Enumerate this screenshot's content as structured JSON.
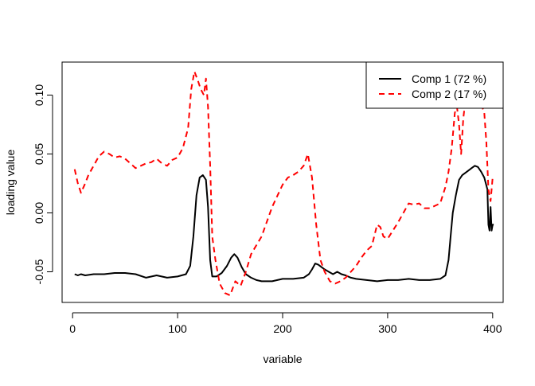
{
  "chart_data": {
    "type": "line",
    "title": "",
    "xlabel": "variable",
    "ylabel": "loading value",
    "xlim": [
      -10,
      410
    ],
    "ylim": [
      -0.076,
      0.128
    ],
    "xticks": [
      0,
      100,
      200,
      300,
      400
    ],
    "yticks": [
      -0.05,
      0.0,
      0.05,
      0.1
    ],
    "xtick_labels": [
      "0",
      "100",
      "200",
      "300",
      "400"
    ],
    "ytick_labels": [
      "-0.05",
      "0.00",
      "0.05",
      "0.10"
    ],
    "grid": false,
    "legend_position": "top-right",
    "series": [
      {
        "name": "Comp 1 (72 %)",
        "color": "#000000",
        "dash": "solid",
        "x": [
          2,
          5,
          8,
          12,
          20,
          30,
          40,
          50,
          60,
          70,
          80,
          90,
          100,
          108,
          112,
          115,
          118,
          121,
          124,
          127,
          129,
          131,
          133,
          137,
          142,
          147,
          151,
          154,
          157,
          161,
          165,
          170,
          175,
          180,
          190,
          200,
          210,
          220,
          225,
          228,
          231,
          234,
          237,
          240,
          244,
          248,
          252,
          256,
          260,
          265,
          270,
          280,
          290,
          300,
          310,
          320,
          330,
          340,
          350,
          355,
          358,
          360,
          362,
          365,
          368,
          371,
          374,
          377,
          380,
          383,
          386,
          389,
          392,
          395,
          396,
          397,
          398,
          399,
          400,
          401
        ],
        "values": [
          -0.052,
          -0.053,
          -0.052,
          -0.053,
          -0.052,
          -0.052,
          -0.051,
          -0.051,
          -0.052,
          -0.055,
          -0.053,
          -0.055,
          -0.054,
          -0.052,
          -0.045,
          -0.02,
          0.015,
          0.03,
          0.032,
          0.028,
          0.005,
          -0.04,
          -0.054,
          -0.054,
          -0.051,
          -0.045,
          -0.038,
          -0.035,
          -0.038,
          -0.046,
          -0.052,
          -0.055,
          -0.057,
          -0.058,
          -0.058,
          -0.056,
          -0.056,
          -0.055,
          -0.052,
          -0.048,
          -0.043,
          -0.044,
          -0.046,
          -0.048,
          -0.05,
          -0.052,
          -0.05,
          -0.052,
          -0.053,
          -0.055,
          -0.056,
          -0.057,
          -0.058,
          -0.057,
          -0.057,
          -0.056,
          -0.057,
          -0.057,
          -0.056,
          -0.053,
          -0.04,
          -0.02,
          0.0,
          0.015,
          0.028,
          0.032,
          0.034,
          0.036,
          0.038,
          0.04,
          0.039,
          0.035,
          0.03,
          0.02,
          -0.01,
          -0.015,
          0.005,
          -0.015,
          -0.01,
          -0.01
        ]
      },
      {
        "name": "Comp 2 (17 %)",
        "color": "#ff0000",
        "dash": "dashed",
        "x": [
          2,
          5,
          8,
          12,
          15,
          20,
          25,
          30,
          35,
          40,
          45,
          50,
          55,
          60,
          65,
          70,
          75,
          80,
          85,
          90,
          95,
          100,
          105,
          110,
          113,
          116,
          119,
          122,
          125,
          127,
          129,
          131,
          133,
          136,
          140,
          145,
          150,
          155,
          160,
          165,
          170,
          180,
          190,
          200,
          205,
          210,
          215,
          220,
          224,
          228,
          232,
          236,
          240,
          245,
          250,
          255,
          260,
          265,
          270,
          275,
          280,
          285,
          290,
          293,
          296,
          300,
          305,
          310,
          315,
          320,
          325,
          330,
          335,
          340,
          345,
          350,
          355,
          358,
          361,
          364,
          366,
          368,
          370,
          372,
          374,
          376,
          378,
          380,
          382,
          384,
          386,
          388,
          390,
          392,
          394,
          396,
          398,
          400
        ],
        "values": [
          0.037,
          0.025,
          0.017,
          0.025,
          0.032,
          0.04,
          0.048,
          0.052,
          0.05,
          0.047,
          0.048,
          0.046,
          0.042,
          0.038,
          0.04,
          0.042,
          0.043,
          0.046,
          0.042,
          0.04,
          0.045,
          0.047,
          0.055,
          0.072,
          0.105,
          0.12,
          0.113,
          0.105,
          0.1,
          0.114,
          0.09,
          0.04,
          -0.02,
          -0.04,
          -0.06,
          -0.068,
          -0.07,
          -0.058,
          -0.062,
          -0.05,
          -0.035,
          -0.02,
          0.005,
          0.024,
          0.03,
          0.032,
          0.035,
          0.04,
          0.05,
          0.03,
          -0.01,
          -0.04,
          -0.05,
          -0.058,
          -0.06,
          -0.058,
          -0.055,
          -0.05,
          -0.045,
          -0.038,
          -0.032,
          -0.028,
          -0.01,
          -0.012,
          -0.02,
          -0.022,
          -0.015,
          -0.008,
          0.0,
          0.008,
          0.007,
          0.008,
          0.004,
          0.004,
          0.006,
          0.008,
          0.022,
          0.035,
          0.055,
          0.085,
          0.09,
          0.075,
          0.05,
          0.08,
          0.095,
          0.098,
          0.095,
          0.093,
          0.097,
          0.1,
          0.094,
          0.09,
          0.09,
          0.085,
          0.06,
          0.02,
          0.01,
          0.03
        ]
      }
    ]
  }
}
